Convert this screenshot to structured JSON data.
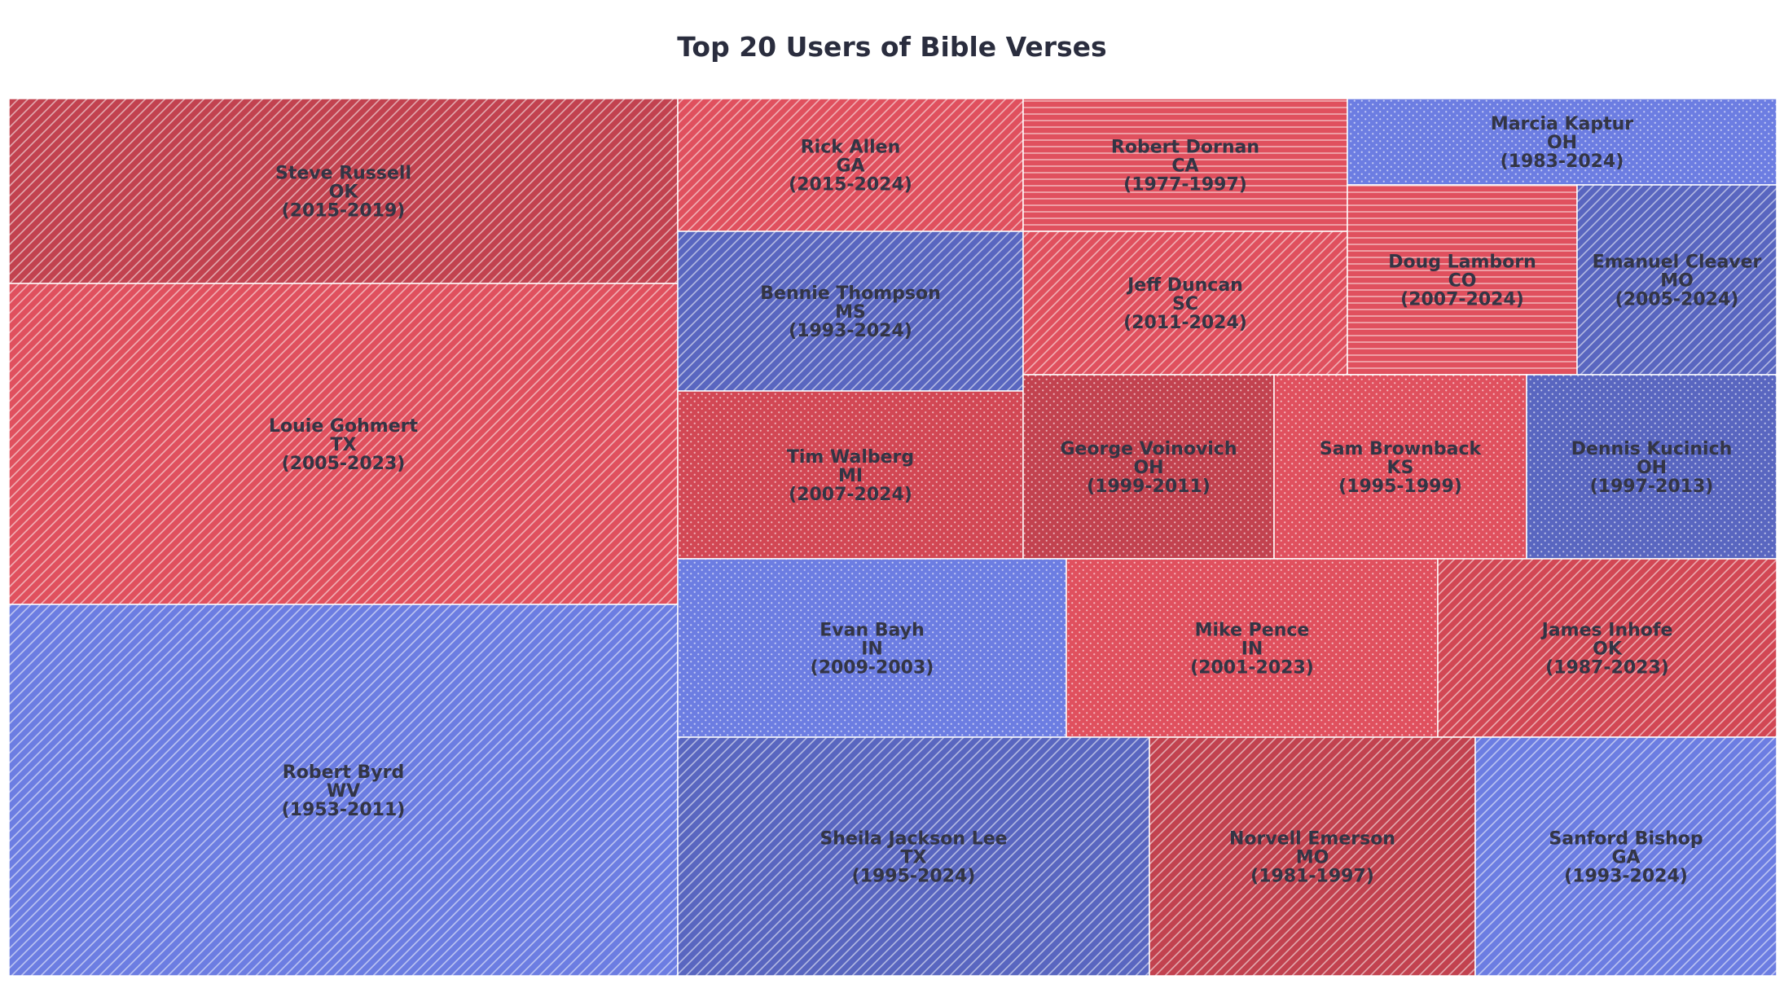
{
  "chart_data": {
    "type": "treemap",
    "title": "Top 20 Users of Bible Verses",
    "colors": {
      "R1": "#c2424f",
      "R2": "#e0505e",
      "R3": "#d24754",
      "D1": "#5966c0",
      "D2": "#6c7de2"
    },
    "tiles": [
      {
        "name": "Steve Russell",
        "state": "OK",
        "years": "(2015-2019)",
        "color": "R1",
        "pattern": "diag"
      },
      {
        "name": "Louie Gohmert",
        "state": "TX",
        "years": "(2005-2023)",
        "color": "R2",
        "pattern": "diag"
      },
      {
        "name": "Robert Byrd",
        "state": "WV",
        "years": "(1953-2011)",
        "color": "D2",
        "pattern": "diag"
      },
      {
        "name": "Rick Allen",
        "state": "GA",
        "years": "(2015-2024)",
        "color": "R2",
        "pattern": "diag"
      },
      {
        "name": "Robert Dornan",
        "state": "CA",
        "years": "(1977-1997)",
        "color": "R2",
        "pattern": "horiz"
      },
      {
        "name": "Marcia Kaptur",
        "state": "OH",
        "years": "(1983-2024)",
        "color": "D2",
        "pattern": "dots"
      },
      {
        "name": "Bennie Thompson",
        "state": "MS",
        "years": "(1993-2024)",
        "color": "D1",
        "pattern": "diag"
      },
      {
        "name": "Jeff Duncan",
        "state": "SC",
        "years": "(2011-2024)",
        "color": "R2",
        "pattern": "diag"
      },
      {
        "name": "Doug Lamborn",
        "state": "CO",
        "years": "(2007-2024)",
        "color": "R2",
        "pattern": "horiz"
      },
      {
        "name": "Emanuel Cleaver",
        "state": "MO",
        "years": "(2005-2024)",
        "color": "D1",
        "pattern": "diag"
      },
      {
        "name": "Tim Walberg",
        "state": "MI",
        "years": "(2007-2024)",
        "color": "R3",
        "pattern": "dots"
      },
      {
        "name": "George Voinovich",
        "state": "OH",
        "years": "(1999-2011)",
        "color": "R1",
        "pattern": "dots"
      },
      {
        "name": "Sam Brownback",
        "state": "KS",
        "years": "(1995-1999)",
        "color": "R2",
        "pattern": "dots"
      },
      {
        "name": "Dennis Kucinich",
        "state": "OH",
        "years": "(1997-2013)",
        "color": "D1",
        "pattern": "dots"
      },
      {
        "name": "Evan Bayh",
        "state": "IN",
        "years": "(2009-2003)",
        "color": "D2",
        "pattern": "dots"
      },
      {
        "name": "Mike Pence",
        "state": "IN",
        "years": "(2001-2023)",
        "color": "R2",
        "pattern": "dots"
      },
      {
        "name": "James Inhofe",
        "state": "OK",
        "years": "(1987-2023)",
        "color": "R3",
        "pattern": "diag"
      },
      {
        "name": "Sheila Jackson Lee",
        "state": "TX",
        "years": "(1995-2024)",
        "color": "D1",
        "pattern": "diag"
      },
      {
        "name": "Norvell Emerson",
        "state": "MO",
        "years": "(1981-1997)",
        "color": "R1",
        "pattern": "diag"
      },
      {
        "name": "Sanford Bishop",
        "state": "GA",
        "years": "(1993-2024)",
        "color": "D2",
        "pattern": "diag"
      }
    ]
  }
}
